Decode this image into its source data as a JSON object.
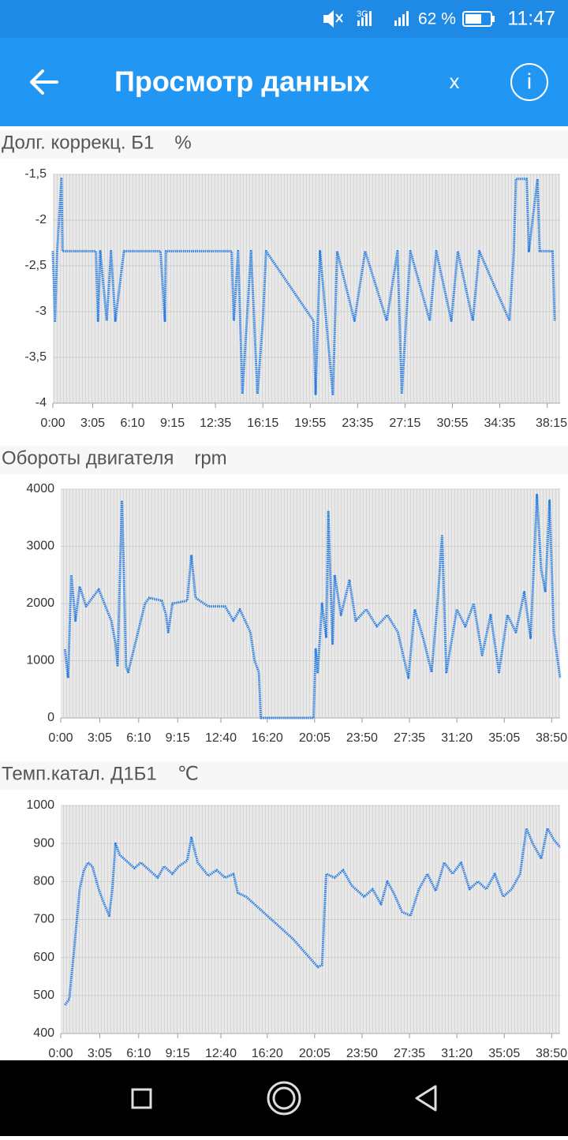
{
  "status_bar": {
    "network": "3G",
    "battery": "62 %",
    "time": "11:47"
  },
  "app_bar": {
    "title": "Просмотр данных",
    "close": "x",
    "info": "i"
  },
  "chart_data": [
    {
      "type": "line",
      "title": "Долг. коррекц. Б1",
      "unit": "%",
      "color": "#2a7de1",
      "grid": true,
      "xlim": [
        0,
        2355
      ],
      "ylim": [
        -4,
        -1.5
      ],
      "yticks": [
        {
          "value": -1.5,
          "label": "-1,5"
        },
        -2,
        {
          "value": -2.5,
          "label": "-2,5"
        },
        -3,
        {
          "value": -3.5,
          "label": "-3,5"
        },
        -4
      ],
      "xticks": [
        {
          "value": 0,
          "label": "0:00"
        },
        {
          "value": 185,
          "label": "3:05"
        },
        {
          "value": 370,
          "label": "6:10"
        },
        {
          "value": 555,
          "label": "9:15"
        },
        {
          "value": 755,
          "label": "12:35"
        },
        {
          "value": 975,
          "label": "16:15"
        },
        {
          "value": 1195,
          "label": "19:55"
        },
        {
          "value": 1415,
          "label": "23:35"
        },
        {
          "value": 1635,
          "label": "27:15"
        },
        {
          "value": 1855,
          "label": "30:55"
        },
        {
          "value": 2075,
          "label": "34:35"
        },
        {
          "value": 2295,
          "label": "38:15"
        }
      ],
      "x": [
        0,
        10,
        20,
        40,
        45,
        200,
        210,
        220,
        250,
        270,
        290,
        330,
        500,
        520,
        525,
        830,
        840,
        860,
        880,
        920,
        950,
        975,
        990,
        1210,
        1220,
        1240,
        1300,
        1320,
        1400,
        1450,
        1550,
        1600,
        1620,
        1640,
        1660,
        1750,
        1780,
        1850,
        1880,
        1950,
        1980,
        2120,
        2140,
        2150,
        2200,
        2210,
        2250,
        2260,
        2320,
        2330
      ],
      "values": [
        -2.34,
        -3.1,
        -2.34,
        -1.55,
        -2.34,
        -2.34,
        -3.1,
        -2.34,
        -3.1,
        -2.34,
        -3.1,
        -2.34,
        -2.34,
        -3.1,
        -2.34,
        -2.34,
        -3.1,
        -2.34,
        -3.9,
        -2.34,
        -3.9,
        -3.1,
        -2.34,
        -3.1,
        -3.9,
        -2.34,
        -3.9,
        -2.34,
        -3.1,
        -2.34,
        -3.1,
        -2.34,
        -3.9,
        -3.1,
        -2.34,
        -3.1,
        -2.34,
        -3.1,
        -2.34,
        -3.1,
        -2.34,
        -3.1,
        -2.34,
        -1.55,
        -1.55,
        -2.34,
        -1.55,
        -2.34,
        -2.34,
        -3.1
      ]
    },
    {
      "type": "line",
      "title": "Обороты двигателя",
      "unit": "rpm",
      "color": "#2a7de1",
      "grid": true,
      "xlim": [
        0,
        2370
      ],
      "ylim": [
        0,
        4000
      ],
      "yticks": [
        0,
        1000,
        2000,
        3000,
        4000
      ],
      "xticks": [
        {
          "value": 0,
          "label": "0:00"
        },
        {
          "value": 185,
          "label": "3:05"
        },
        {
          "value": 370,
          "label": "6:10"
        },
        {
          "value": 555,
          "label": "9:15"
        },
        {
          "value": 760,
          "label": "12:40"
        },
        {
          "value": 980,
          "label": "16:20"
        },
        {
          "value": 1205,
          "label": "20:05"
        },
        {
          "value": 1430,
          "label": "23:50"
        },
        {
          "value": 1655,
          "label": "27:35"
        },
        {
          "value": 1880,
          "label": "31:20"
        },
        {
          "value": 2105,
          "label": "35:05"
        },
        {
          "value": 2330,
          "label": "38:50"
        }
      ],
      "x": [
        20,
        35,
        50,
        70,
        90,
        120,
        180,
        240,
        260,
        270,
        280,
        290,
        300,
        310,
        320,
        400,
        420,
        480,
        500,
        510,
        530,
        600,
        620,
        640,
        700,
        780,
        820,
        850,
        900,
        920,
        940,
        950,
        1200,
        1210,
        1220,
        1240,
        1260,
        1270,
        1290,
        1300,
        1330,
        1370,
        1400,
        1450,
        1500,
        1550,
        1600,
        1650,
        1680,
        1720,
        1760,
        1790,
        1810,
        1830,
        1880,
        1920,
        1960,
        2000,
        2040,
        2080,
        2120,
        2160,
        2200,
        2230,
        2260,
        2280,
        2300,
        2320,
        2340,
        2370
      ],
      "values": [
        1200,
        700,
        2500,
        1700,
        2300,
        1950,
        2250,
        1700,
        1300,
        900,
        2400,
        3800,
        2500,
        900,
        800,
        2000,
        2100,
        2050,
        1800,
        1500,
        2000,
        2050,
        2850,
        2100,
        1950,
        1950,
        1700,
        1900,
        1500,
        1000,
        800,
        0,
        0,
        1200,
        800,
        2000,
        1400,
        3600,
        1300,
        2500,
        1800,
        2400,
        1700,
        1900,
        1600,
        1800,
        1500,
        700,
        1900,
        1400,
        800,
        2100,
        3200,
        800,
        1900,
        1600,
        2000,
        1100,
        1800,
        800,
        1800,
        1500,
        2200,
        1400,
        3900,
        2600,
        2200,
        3800,
        1500,
        700
      ]
    },
    {
      "type": "line",
      "title": "Темп.катал. Д1Б1",
      "unit": "℃",
      "color": "#2a7de1",
      "grid": true,
      "xlim": [
        0,
        2370
      ],
      "ylim": [
        400,
        1000
      ],
      "yticks": [
        400,
        500,
        600,
        700,
        800,
        900,
        1000
      ],
      "xticks": [
        {
          "value": 0,
          "label": "0:00"
        },
        {
          "value": 185,
          "label": "3:05"
        },
        {
          "value": 370,
          "label": "6:10"
        },
        {
          "value": 555,
          "label": "9:15"
        },
        {
          "value": 760,
          "label": "12:40"
        },
        {
          "value": 980,
          "label": "16:20"
        },
        {
          "value": 1205,
          "label": "20:05"
        },
        {
          "value": 1430,
          "label": "23:50"
        },
        {
          "value": 1655,
          "label": "27:35"
        },
        {
          "value": 1880,
          "label": "31:20"
        },
        {
          "value": 2105,
          "label": "35:05"
        },
        {
          "value": 2330,
          "label": "38:50"
        }
      ],
      "x": [
        20,
        40,
        60,
        90,
        110,
        130,
        150,
        180,
        200,
        230,
        245,
        260,
        280,
        350,
        380,
        420,
        460,
        490,
        530,
        560,
        600,
        620,
        650,
        700,
        740,
        780,
        820,
        840,
        880,
        920,
        1000,
        1100,
        1180,
        1220,
        1240,
        1260,
        1300,
        1340,
        1380,
        1420,
        1440,
        1480,
        1520,
        1550,
        1580,
        1620,
        1660,
        1700,
        1740,
        1780,
        1820,
        1860,
        1900,
        1940,
        1980,
        2020,
        2060,
        2100,
        2140,
        2180,
        2210,
        2240,
        2280,
        2310,
        2340,
        2370
      ],
      "values": [
        475,
        490,
        600,
        780,
        830,
        850,
        840,
        780,
        750,
        710,
        780,
        900,
        870,
        835,
        850,
        830,
        810,
        840,
        820,
        840,
        855,
        915,
        850,
        815,
        830,
        810,
        820,
        770,
        760,
        740,
        700,
        650,
        600,
        575,
        580,
        820,
        810,
        830,
        790,
        770,
        760,
        780,
        740,
        800,
        770,
        720,
        710,
        780,
        820,
        775,
        850,
        820,
        850,
        780,
        800,
        780,
        820,
        760,
        780,
        820,
        940,
        900,
        860,
        940,
        910,
        890
      ]
    }
  ]
}
